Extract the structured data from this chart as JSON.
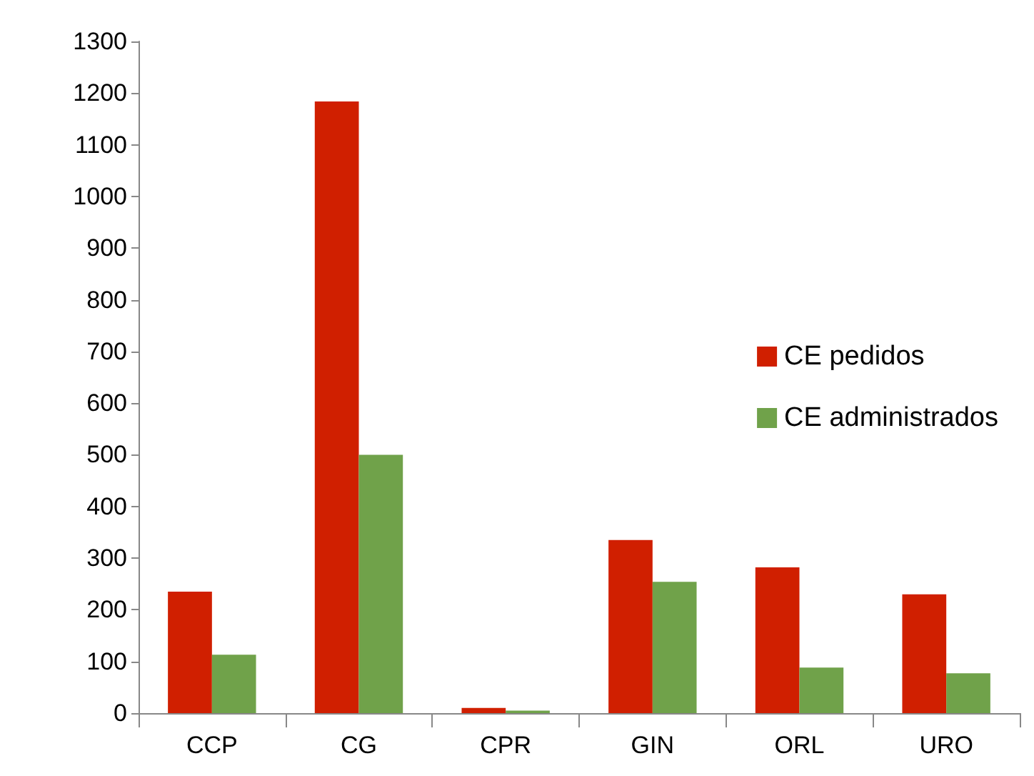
{
  "chart_data": {
    "type": "bar",
    "categories": [
      "CCP",
      "CG",
      "CPR",
      "GIN",
      "ORL",
      "URO"
    ],
    "series": [
      {
        "name": "CE pedidos",
        "color": "#d01f00",
        "values": [
          235,
          1184,
          10,
          335,
          282,
          230
        ]
      },
      {
        "name": "CE administrados",
        "color": "#70a24a",
        "values": [
          113,
          500,
          5,
          254,
          88,
          77
        ]
      }
    ],
    "ylim": [
      0,
      1300
    ],
    "yticks": [
      0,
      100,
      200,
      300,
      400,
      500,
      600,
      700,
      800,
      900,
      1000,
      1100,
      1200,
      1300
    ],
    "grid": false,
    "legend": "right"
  }
}
